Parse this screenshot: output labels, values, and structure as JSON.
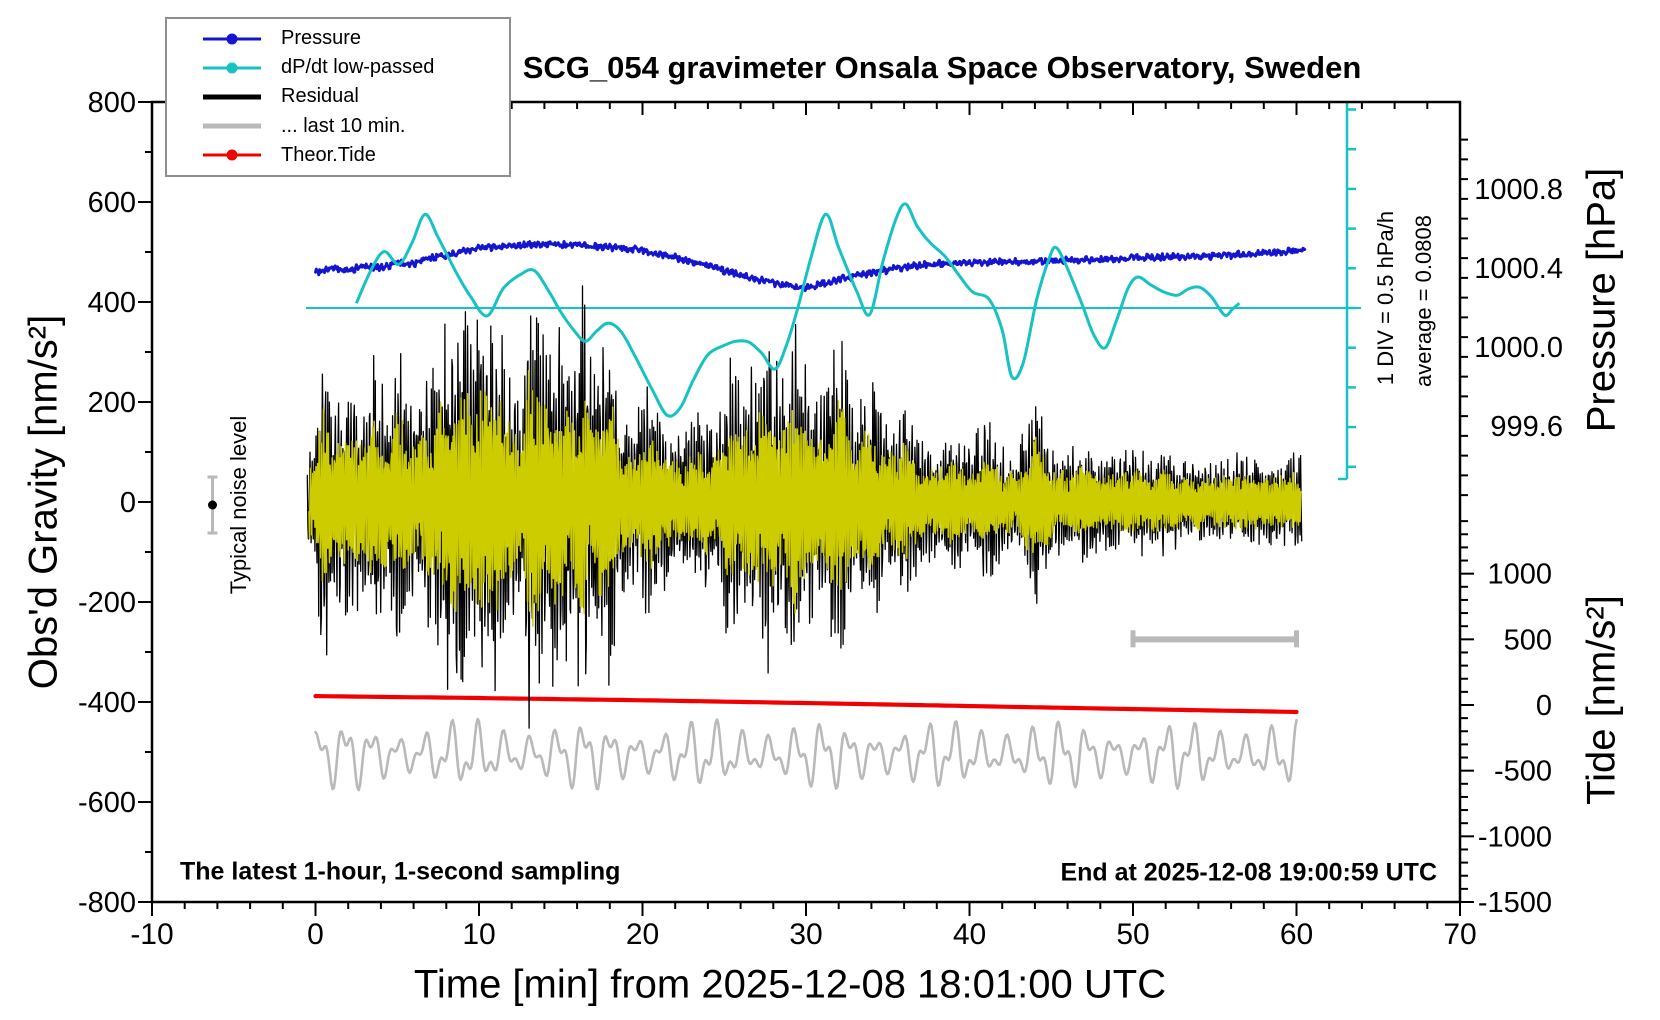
{
  "title": "SCG_054 gravimeter Onsala Space Observatory, Sweden",
  "legend": {
    "entries": [
      {
        "label": "Pressure",
        "color": "#1515d0",
        "style": "dot-line"
      },
      {
        "label": "dP/dt low-passed",
        "color": "#16c2c2",
        "style": "dot-line"
      },
      {
        "label": "Residual",
        "color": "#000000",
        "style": "thick-line"
      },
      {
        "label": "... last 10 min.",
        "color": "#b9b9b9",
        "style": "thick-line"
      },
      {
        "label": "Theor.Tide",
        "color": "#f00000",
        "style": "dot-line"
      }
    ]
  },
  "axes": {
    "left": {
      "label": "Obs'd Gravity [nm/s²]",
      "range": [
        -800,
        800
      ],
      "tick_values": [
        800,
        600,
        400,
        200,
        0,
        -200,
        -400,
        -600,
        -800
      ],
      "minor_step": 100
    },
    "bottom": {
      "label": "Time [min] from 2025-12-08 18:01:00 UTC",
      "range": [
        -10,
        70
      ],
      "tick_values": [
        -10,
        0,
        10,
        20,
        30,
        40,
        50,
        60,
        70
      ],
      "minor_step": 2
    },
    "right_pressure": {
      "label": "Pressure [hPa]",
      "tick_labels": [
        "1000.8",
        "1000.4",
        "1000.0",
        "999.6"
      ],
      "tick_values": [
        1000.8,
        1000.4,
        1000.0,
        999.6
      ],
      "minor_step": 0.1
    },
    "right_tide": {
      "label": "Tide [nm/s²]",
      "tick_values": [
        1000,
        500,
        0,
        -500,
        -1000,
        -1500
      ],
      "minor_step": 100
    }
  },
  "annotations": {
    "div_scale": "1 DIV = 0.5 hPa/h",
    "average": "average = 0.0808",
    "noise_level": "Typical noise level",
    "sampling": "The latest 1-hour, 1-second sampling",
    "end_time": "End at 2025-12-08 19:00:59 UTC"
  },
  "chart_data": {
    "type": "line",
    "title": "SCG_054 gravimeter Onsala Space Observatory, Sweden",
    "xlabel": "Time [min] from 2025-12-08 18:01:00 UTC",
    "x_range_min": [
      -10,
      70
    ],
    "gravity_range": [
      -800,
      800
    ],
    "series": [
      {
        "name": "Pressure",
        "axis": "pressure",
        "unit": "hPa",
        "color": "#1515d0",
        "noise_hpa": 0.013,
        "points": [
          [
            0,
            1000.38
          ],
          [
            1,
            1000.4
          ],
          [
            2,
            1000.385
          ],
          [
            3,
            1000.41
          ],
          [
            4,
            1000.4
          ],
          [
            5,
            1000.425
          ],
          [
            6,
            1000.42
          ],
          [
            7,
            1000.45
          ],
          [
            8,
            1000.465
          ],
          [
            9,
            1000.485
          ],
          [
            10,
            1000.5
          ],
          [
            12,
            1000.515
          ],
          [
            14,
            1000.52
          ],
          [
            16,
            1000.515
          ],
          [
            18,
            1000.505
          ],
          [
            20,
            1000.49
          ],
          [
            22,
            1000.455
          ],
          [
            24,
            1000.41
          ],
          [
            26,
            1000.365
          ],
          [
            28,
            1000.325
          ],
          [
            29.7,
            1000.3
          ],
          [
            31,
            1000.32
          ],
          [
            33,
            1000.36
          ],
          [
            35,
            1000.39
          ],
          [
            37,
            1000.415
          ],
          [
            39,
            1000.425
          ],
          [
            41,
            1000.43
          ],
          [
            44,
            1000.432
          ],
          [
            47,
            1000.44
          ],
          [
            50,
            1000.45
          ],
          [
            53,
            1000.457
          ],
          [
            56,
            1000.466
          ],
          [
            58,
            1000.476
          ],
          [
            60,
            1000.488
          ],
          [
            60.5,
            1000.49
          ]
        ]
      },
      {
        "name": "dP/dt low-passed",
        "axis": "dpdt",
        "unit": "hPa/h",
        "color": "#16c2c2",
        "div_hpa_per_h": 0.5,
        "average_hpa_per_h": 0.0808,
        "points": [
          [
            2.5,
            0.06
          ],
          [
            3.4,
            0.48
          ],
          [
            4.2,
            0.71
          ],
          [
            5.1,
            0.55
          ],
          [
            5.9,
            0.82
          ],
          [
            6.7,
            1.18
          ],
          [
            7.5,
            0.89
          ],
          [
            8.6,
            0.45
          ],
          [
            9.5,
            0.14
          ],
          [
            10.5,
            -0.1
          ],
          [
            11.5,
            0.25
          ],
          [
            12.6,
            0.43
          ],
          [
            13.4,
            0.47
          ],
          [
            14.3,
            0.2
          ],
          [
            15.0,
            -0.05
          ],
          [
            15.8,
            -0.28
          ],
          [
            16.5,
            -0.42
          ],
          [
            17.2,
            -0.29
          ],
          [
            17.9,
            -0.19
          ],
          [
            18.7,
            -0.3
          ],
          [
            19.6,
            -0.63
          ],
          [
            20.6,
            -1.03
          ],
          [
            21.5,
            -1.35
          ],
          [
            22.3,
            -1.26
          ],
          [
            23.1,
            -0.91
          ],
          [
            24.0,
            -0.59
          ],
          [
            25.0,
            -0.47
          ],
          [
            25.7,
            -0.42
          ],
          [
            26.5,
            -0.43
          ],
          [
            27.3,
            -0.57
          ],
          [
            28.1,
            -0.77
          ],
          [
            28.8,
            -0.47
          ],
          [
            29.5,
            0.0
          ],
          [
            30.3,
            0.63
          ],
          [
            31.2,
            1.18
          ],
          [
            32.0,
            0.76
          ],
          [
            33.1,
            0.21
          ],
          [
            33.9,
            -0.08
          ],
          [
            34.7,
            0.58
          ],
          [
            35.5,
            1.12
          ],
          [
            36.1,
            1.31
          ],
          [
            36.8,
            1.03
          ],
          [
            37.6,
            0.82
          ],
          [
            38.5,
            0.65
          ],
          [
            39.4,
            0.4
          ],
          [
            40.2,
            0.2
          ],
          [
            41.2,
            0.11
          ],
          [
            42.0,
            -0.28
          ],
          [
            42.6,
            -0.87
          ],
          [
            43.3,
            -0.68
          ],
          [
            44.1,
            0.1
          ],
          [
            44.9,
            0.64
          ],
          [
            45.3,
            0.76
          ],
          [
            45.9,
            0.54
          ],
          [
            46.9,
            0.04
          ],
          [
            47.6,
            -0.34
          ],
          [
            48.3,
            -0.5
          ],
          [
            49.0,
            -0.15
          ],
          [
            49.7,
            0.25
          ],
          [
            50.3,
            0.39
          ],
          [
            51.1,
            0.29
          ],
          [
            51.9,
            0.2
          ],
          [
            52.7,
            0.16
          ],
          [
            53.4,
            0.24
          ],
          [
            54.1,
            0.26
          ],
          [
            54.8,
            0.14
          ],
          [
            55.6,
            -0.09
          ],
          [
            56.1,
            -0.01
          ],
          [
            56.5,
            0.06
          ]
        ]
      },
      {
        "name": "Residual",
        "axis": "gravity",
        "unit": "nm/s²",
        "color": "#000000",
        "envelope": [
          [
            -0.5,
            120
          ],
          [
            0,
            140
          ],
          [
            0.5,
            370
          ],
          [
            1,
            190
          ],
          [
            2,
            250
          ],
          [
            3,
            200
          ],
          [
            3.5,
            310
          ],
          [
            4.5,
            200
          ],
          [
            5,
            330
          ],
          [
            6,
            190
          ],
          [
            7,
            270
          ],
          [
            8,
            390
          ],
          [
            9,
            400
          ],
          [
            10,
            380
          ],
          [
            10.5,
            420
          ],
          [
            11,
            400
          ],
          [
            12,
            260
          ],
          [
            12.7,
            200
          ],
          [
            13,
            480
          ],
          [
            13.5,
            420
          ],
          [
            14,
            330
          ],
          [
            15,
            400
          ],
          [
            15.7,
            280
          ],
          [
            16.3,
            430
          ],
          [
            17,
            280
          ],
          [
            18,
            400
          ],
          [
            18.7,
            180
          ],
          [
            19.5,
            170
          ],
          [
            20.5,
            250
          ],
          [
            21.5,
            160
          ],
          [
            22.5,
            140
          ],
          [
            23.5,
            190
          ],
          [
            24.5,
            160
          ],
          [
            25.3,
            290
          ],
          [
            26,
            230
          ],
          [
            27,
            290
          ],
          [
            27.7,
            360
          ],
          [
            28.5,
            240
          ],
          [
            29.3,
            400
          ],
          [
            30,
            260
          ],
          [
            31,
            220
          ],
          [
            32,
            360
          ],
          [
            33,
            190
          ],
          [
            34,
            280
          ],
          [
            35,
            160
          ],
          [
            36,
            220
          ],
          [
            37,
            130
          ],
          [
            38,
            120
          ],
          [
            39,
            150
          ],
          [
            40,
            110
          ],
          [
            41,
            190
          ],
          [
            42,
            110
          ],
          [
            43,
            110
          ],
          [
            44,
            230
          ],
          [
            45,
            120
          ],
          [
            46,
            100
          ],
          [
            47,
            140
          ],
          [
            48,
            100
          ],
          [
            49,
            95
          ],
          [
            50,
            120
          ],
          [
            51,
            95
          ],
          [
            52,
            110
          ],
          [
            53,
            85
          ],
          [
            54,
            100
          ],
          [
            55,
            85
          ],
          [
            56,
            95
          ],
          [
            57,
            105
          ],
          [
            58,
            85
          ],
          [
            59,
            95
          ],
          [
            60,
            105
          ],
          [
            60.3,
            100
          ]
        ]
      },
      {
        "name": "Residual band-passed overlay",
        "axis": "gravity",
        "color": "#cccc00",
        "envelope_scale": 0.58
      },
      {
        "name": "... last 10 min.",
        "axis": "gravity",
        "color": "#b9b9b9",
        "center": -505,
        "amplitude": 72
      },
      {
        "name": "Theor.Tide",
        "axis": "tide",
        "unit": "nm/s²",
        "color": "#f00000",
        "points": [
          [
            0,
            68
          ],
          [
            10,
            53
          ],
          [
            20,
            36
          ],
          [
            30,
            15
          ],
          [
            40,
            -8
          ],
          [
            50,
            -31
          ],
          [
            60,
            -53
          ]
        ]
      }
    ],
    "noise_marker": {
      "x_min": -6.3,
      "value": 0,
      "error": 28,
      "bar_color": "#b9b9b9"
    },
    "scale_bar": {
      "from_min": 50,
      "to_min": 60,
      "tide_value": 500,
      "color": "#b9b9b9"
    },
    "dpdt_zero_line": {
      "value": 0,
      "color": "#16c2c2"
    }
  }
}
